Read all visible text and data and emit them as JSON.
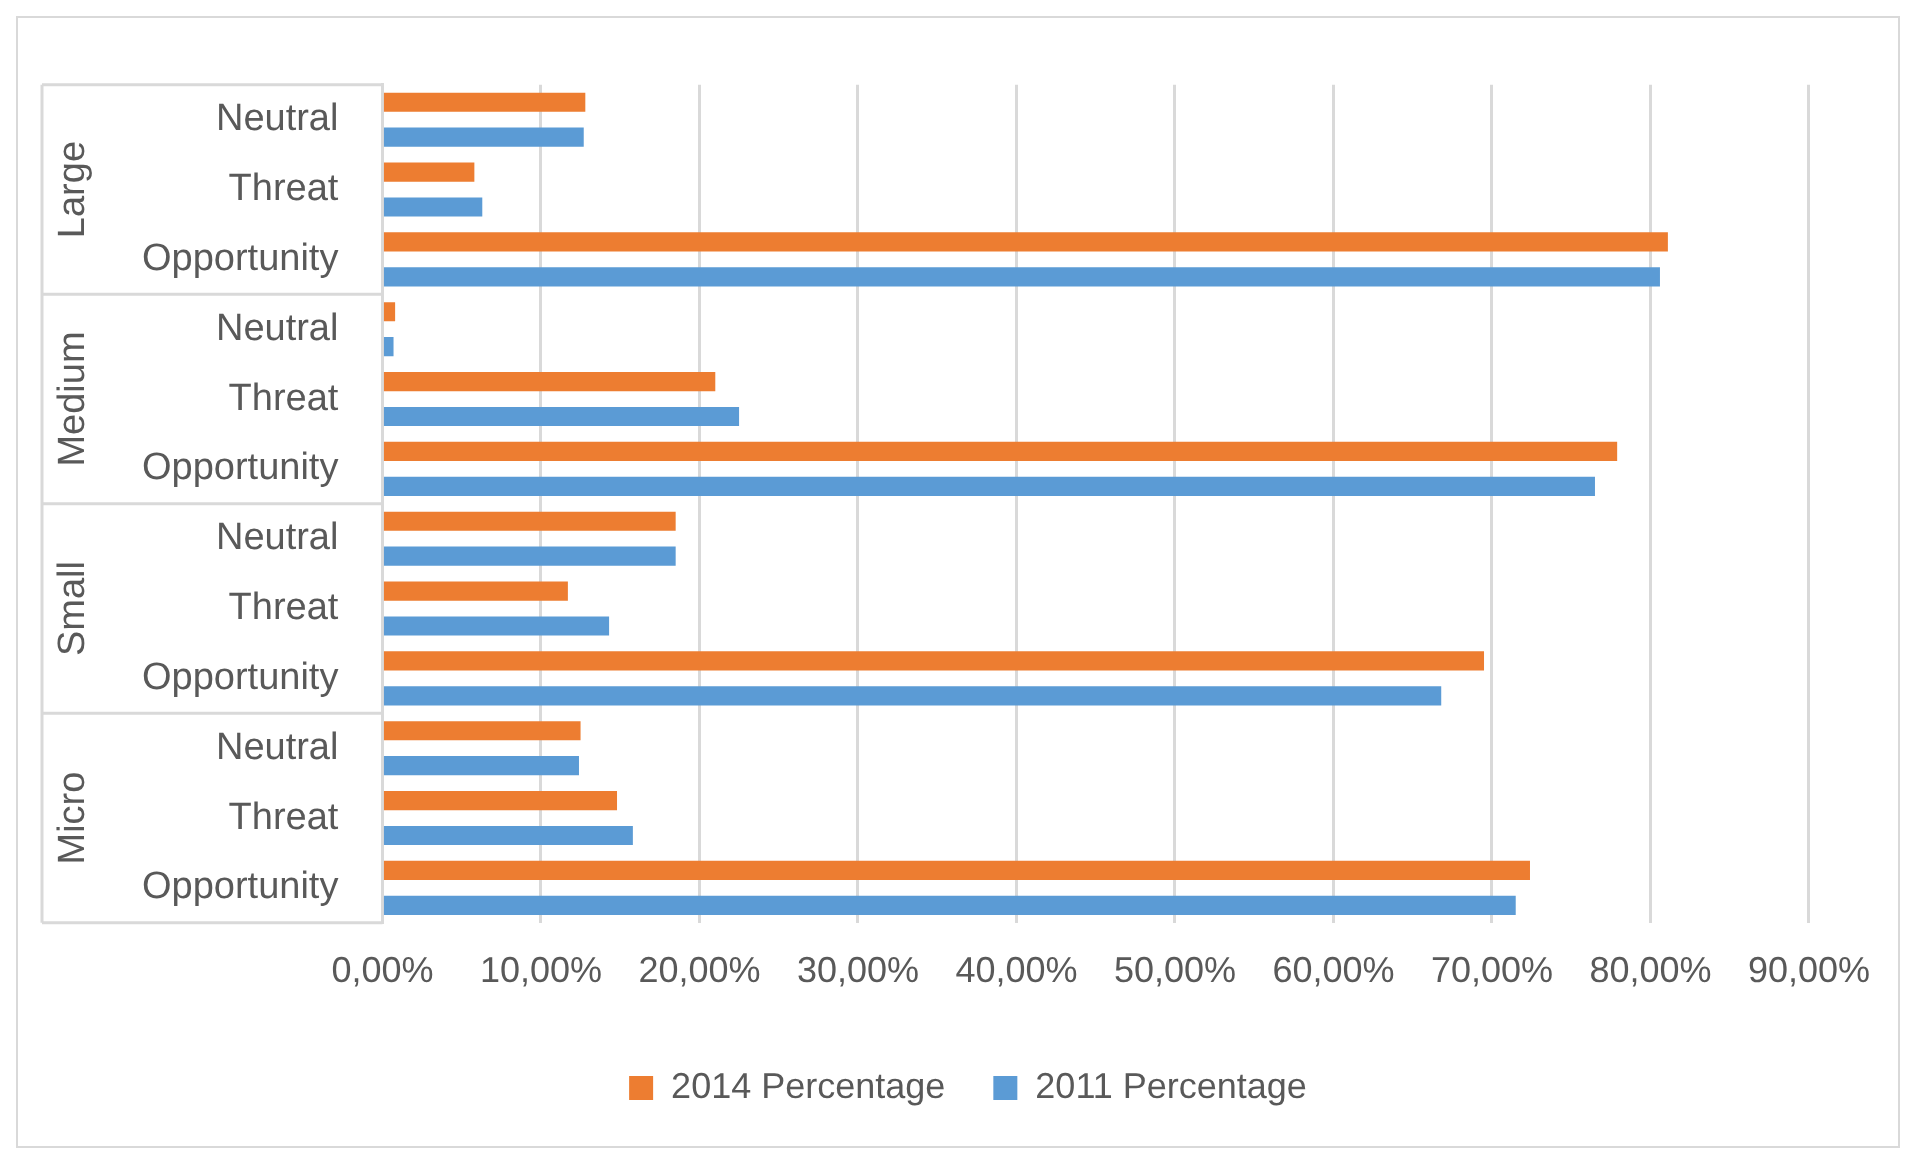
{
  "chart_data": {
    "type": "bar",
    "orientation": "horizontal",
    "categories": [
      "Neutral",
      "Threat",
      "Opportunity",
      "Neutral",
      "Threat",
      "Opportunity",
      "Neutral",
      "Threat",
      "Opportunity",
      "Neutral",
      "Threat",
      "Opportunity"
    ],
    "series": [
      {
        "name": "2014 Percentage",
        "color": "#ed7d31",
        "values": [
          12.8,
          5.8,
          81.1,
          0.8,
          21.0,
          77.9,
          18.5,
          11.7,
          69.5,
          12.5,
          14.8,
          72.4
        ]
      },
      {
        "name": "2011 Percentage",
        "color": "#5b9bd5",
        "values": [
          12.7,
          6.3,
          80.6,
          0.7,
          22.5,
          76.5,
          18.5,
          14.3,
          66.8,
          12.4,
          15.8,
          71.5
        ]
      }
    ],
    "annotations": [
      "Large",
      "Medium",
      "Small",
      "Micro"
    ],
    "xlim": [
      0,
      90
    ],
    "xticks": [
      {
        "value": 0,
        "label": "0,00%"
      },
      {
        "value": 10,
        "label": "10,00%"
      },
      {
        "value": 20,
        "label": "20,00%"
      },
      {
        "value": 30,
        "label": "30,00%"
      },
      {
        "value": 40,
        "label": "40,00%"
      },
      {
        "value": 50,
        "label": "50,00%"
      },
      {
        "value": 60,
        "label": "60,00%"
      },
      {
        "value": 70,
        "label": "70,00%"
      },
      {
        "value": 80,
        "label": "80,00%"
      },
      {
        "value": 90,
        "label": "90,00%"
      }
    ],
    "grid": "x",
    "legend": "bottom"
  }
}
